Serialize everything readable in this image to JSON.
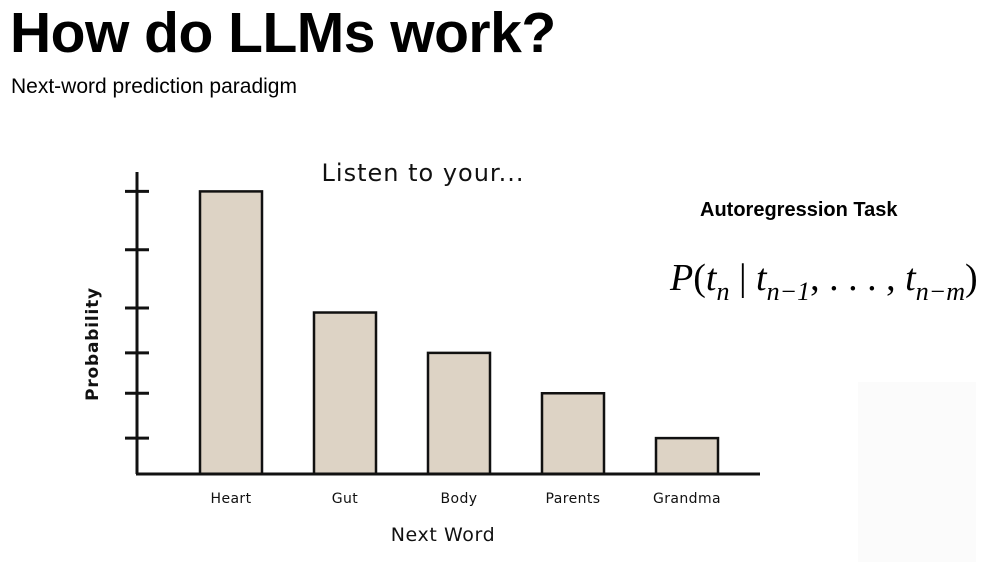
{
  "slide": {
    "title": "How do LLMs work?",
    "subtitle": "Next-word prediction paradigm"
  },
  "side_panel": {
    "heading": "Autoregression Task",
    "formula": {
      "P": "P",
      "open": "(",
      "t1": "t",
      "sub1": "n",
      "bar": " | ",
      "t2": "t",
      "sub2": "n−1",
      "sep": ", . . . , ",
      "t3": "t",
      "sub3": "n−m",
      "close": ")"
    }
  },
  "chart_data": {
    "type": "bar",
    "title": "Listen to your...",
    "xlabel": "Next Word",
    "ylabel": "Probability",
    "categories": [
      "Heart",
      "Gut",
      "Body",
      "Parents",
      "Grandma"
    ],
    "values": [
      6.3,
      3.6,
      2.7,
      1.8,
      0.8
    ],
    "ylim": [
      0,
      7
    ],
    "yticks": [
      0.8,
      1.8,
      2.7,
      3.7,
      5.0,
      6.3
    ],
    "ytick_labels": false,
    "grid": false,
    "colors": {
      "bar_fill": "#ddd3c5",
      "bar_stroke": "#111111",
      "axis": "#111111"
    }
  }
}
